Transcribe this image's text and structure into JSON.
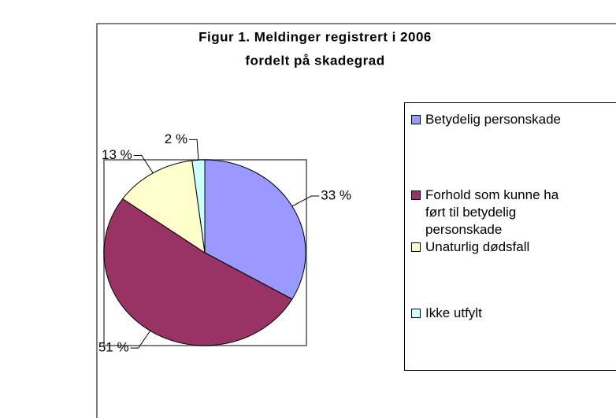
{
  "chart_data": {
    "type": "pie",
    "title": [
      "Figur 1.  Meldinger registrert i 2006",
      "fordelt på skadegrad"
    ],
    "categories": [
      "Betydelig personskade",
      "Forhold som kunne ha ført til betydelig personskade",
      "Unaturlig dødsfall",
      "Ikke utfylt"
    ],
    "values": [
      33,
      51,
      13,
      2
    ],
    "value_labels": [
      "33 %",
      "51 %",
      "13 %",
      "2 %"
    ],
    "colors": [
      "#9999ff",
      "#993366",
      "#ffffcc",
      "#ccffff"
    ],
    "legend": "right"
  }
}
